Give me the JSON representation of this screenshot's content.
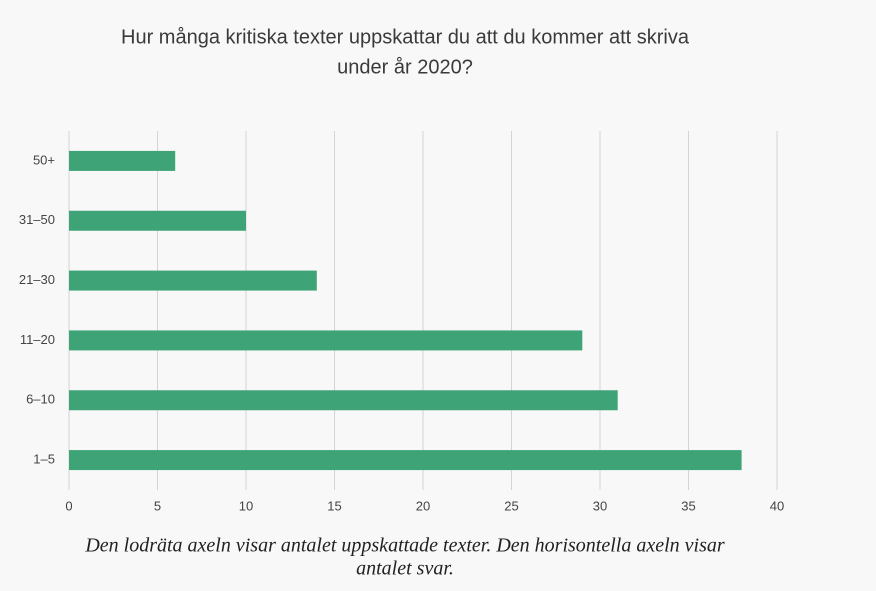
{
  "chart_data": {
    "type": "barh",
    "title": [
      "Hur många kritiska texter uppskattar du att du kommer att skriva",
      "under år 2020?"
    ],
    "categories": [
      "50+",
      "31–50",
      "21–30",
      "11–20",
      "6–10",
      "1–5"
    ],
    "values": [
      6,
      10,
      14,
      29,
      31,
      38
    ],
    "color": "#3ea477",
    "xlim": [
      0,
      40
    ],
    "xticks": [
      0,
      5,
      10,
      15,
      20,
      25,
      30,
      35,
      40
    ],
    "grid": true,
    "caption": [
      "Den lodräta axeln visar antalet uppskattade texter. Den horisontella axeln visar",
      "antalet svar."
    ]
  }
}
